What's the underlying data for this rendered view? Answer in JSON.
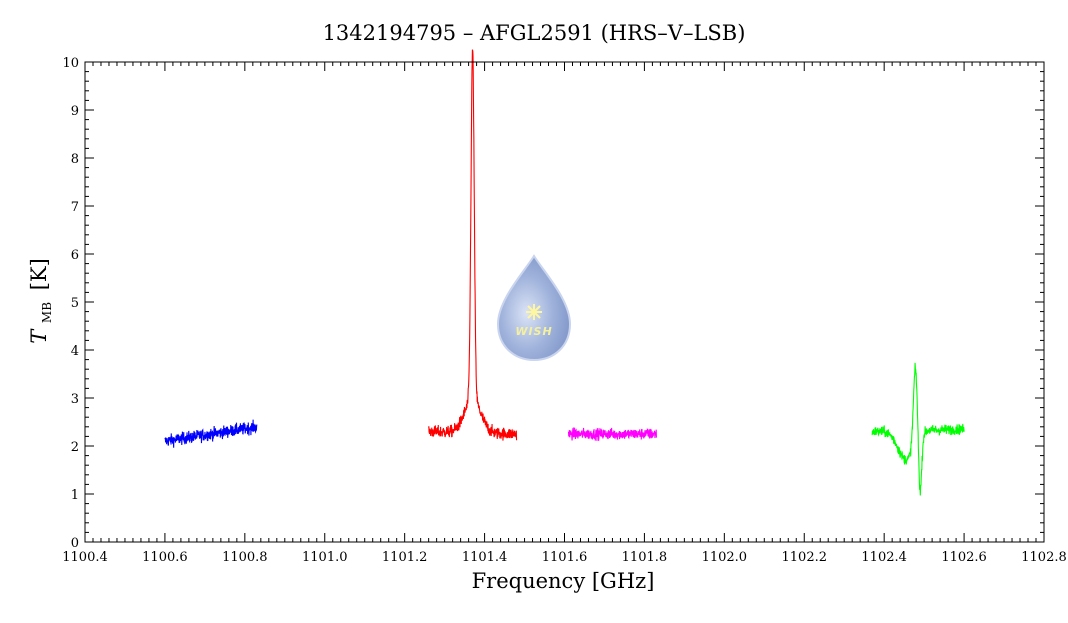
{
  "chart_data": {
    "type": "line",
    "title": "1342194795 – AFGL2591 (HRS–V–LSB)",
    "xlabel": "Frequency [GHz]",
    "ylabel_main": "T",
    "ylabel_sub": "MB",
    "ylabel_unit": "[K]",
    "xlim": [
      1100.4,
      1102.8
    ],
    "ylim": [
      0,
      10
    ],
    "x_ticks": [
      "1100.4",
      "1100.6",
      "1100.8",
      "1101.0",
      "1101.2",
      "1101.4",
      "1101.6",
      "1101.8",
      "1102.0",
      "1102.2",
      "1102.4",
      "1102.6",
      "1102.8"
    ],
    "y_ticks": [
      "0",
      "1",
      "2",
      "3",
      "4",
      "5",
      "6",
      "7",
      "8",
      "9",
      "10"
    ],
    "grid": false,
    "series": [
      {
        "color": "#0000ff",
        "x_range": [
          1100.6,
          1100.83
        ],
        "baseline": [
          [
            1100.6,
            2.1
          ],
          [
            1100.83,
            2.4
          ]
        ],
        "noise": 0.12
      },
      {
        "color": "#ff0000",
        "x_range": [
          1101.26,
          1101.48
        ],
        "baseline": [
          [
            1101.26,
            2.3
          ],
          [
            1101.48,
            2.25
          ]
        ],
        "noise": 0.12,
        "features": [
          {
            "center": 1101.37,
            "amplitude": 7.3,
            "width": 0.004
          },
          {
            "center": 1101.37,
            "amplitude": 0.7,
            "width": 0.02
          }
        ]
      },
      {
        "color": "#ff00ff",
        "x_range": [
          1101.61,
          1101.83
        ],
        "baseline": [
          [
            1101.61,
            2.25
          ],
          [
            1101.83,
            2.25
          ]
        ],
        "noise": 0.11
      },
      {
        "color": "#00ff00",
        "x_range": [
          1102.37,
          1102.6
        ],
        "baseline": [
          [
            1102.37,
            2.3
          ],
          [
            1102.6,
            2.35
          ]
        ],
        "noise": 0.1,
        "features": [
          {
            "center": 1102.455,
            "amplitude": -0.6,
            "width": 0.02
          },
          {
            "center": 1102.478,
            "amplitude": 1.6,
            "width": 0.005
          },
          {
            "center": 1102.49,
            "amplitude": -1.2,
            "width": 0.004
          }
        ]
      }
    ]
  },
  "logo": {
    "text": "WISH",
    "colors": {
      "drop": "#9fb2db",
      "drop_edge": "#c9d4ee",
      "star": "#fff6a0"
    }
  }
}
